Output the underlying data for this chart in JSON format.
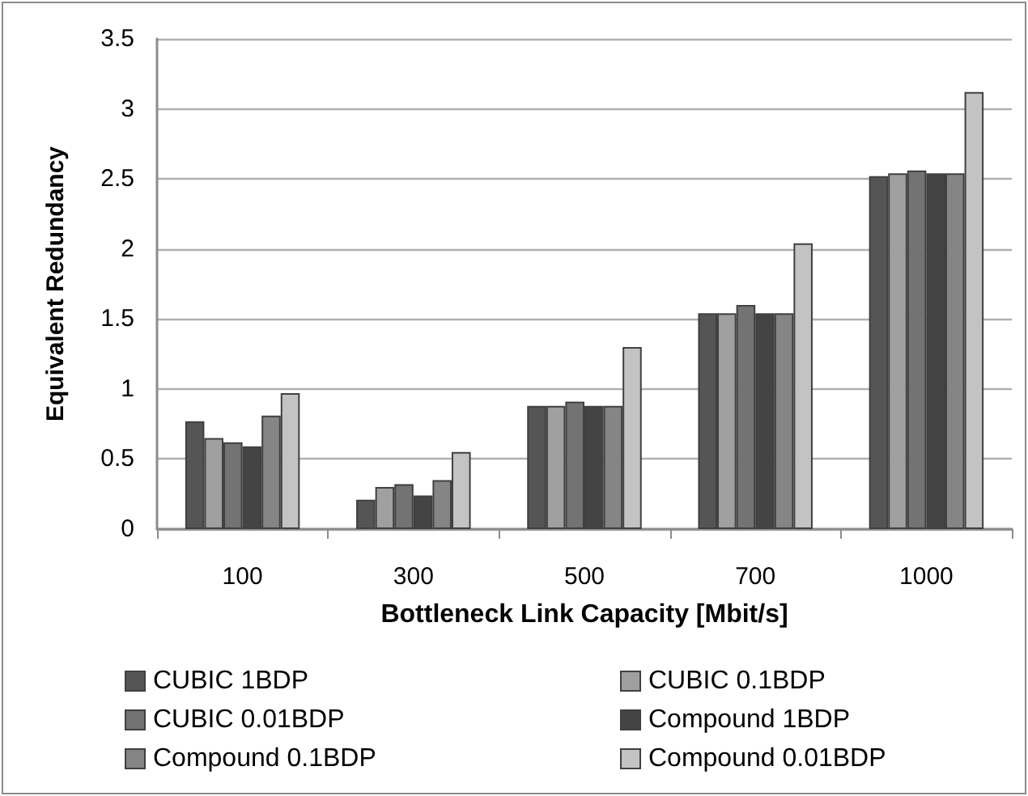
{
  "chart_data": {
    "type": "bar",
    "xlabel": "Bottleneck Link Capacity [Mbit/s]",
    "ylabel": "Equivalent Redundancy",
    "categories": [
      "100",
      "300",
      "500",
      "700",
      "1000"
    ],
    "series": [
      {
        "name": "CUBIC 1BDP",
        "color": "#555555",
        "values": [
          0.77,
          0.21,
          0.88,
          1.54,
          2.52
        ]
      },
      {
        "name": "CUBIC 0.1BDP",
        "color": "#a0a0a0",
        "values": [
          0.65,
          0.3,
          0.88,
          1.54,
          2.54
        ]
      },
      {
        "name": "CUBIC 0.01BDP",
        "color": "#737373",
        "values": [
          0.62,
          0.32,
          0.91,
          1.6,
          2.56
        ]
      },
      {
        "name": "Compound 1BDP",
        "color": "#444444",
        "values": [
          0.59,
          0.24,
          0.88,
          1.54,
          2.54
        ]
      },
      {
        "name": "Compound 0.1BDP",
        "color": "#858585",
        "values": [
          0.81,
          0.35,
          0.88,
          1.54,
          2.54
        ]
      },
      {
        "name": "Compound 0.01BDP",
        "color": "#c3c3c3",
        "values": [
          0.97,
          0.55,
          1.3,
          2.04,
          3.12
        ]
      }
    ],
    "ylim": [
      0,
      3.5
    ],
    "yticks": [
      0,
      0.5,
      1,
      1.5,
      2,
      2.5,
      3,
      3.5
    ],
    "grid": "y",
    "legend": "bottom"
  }
}
